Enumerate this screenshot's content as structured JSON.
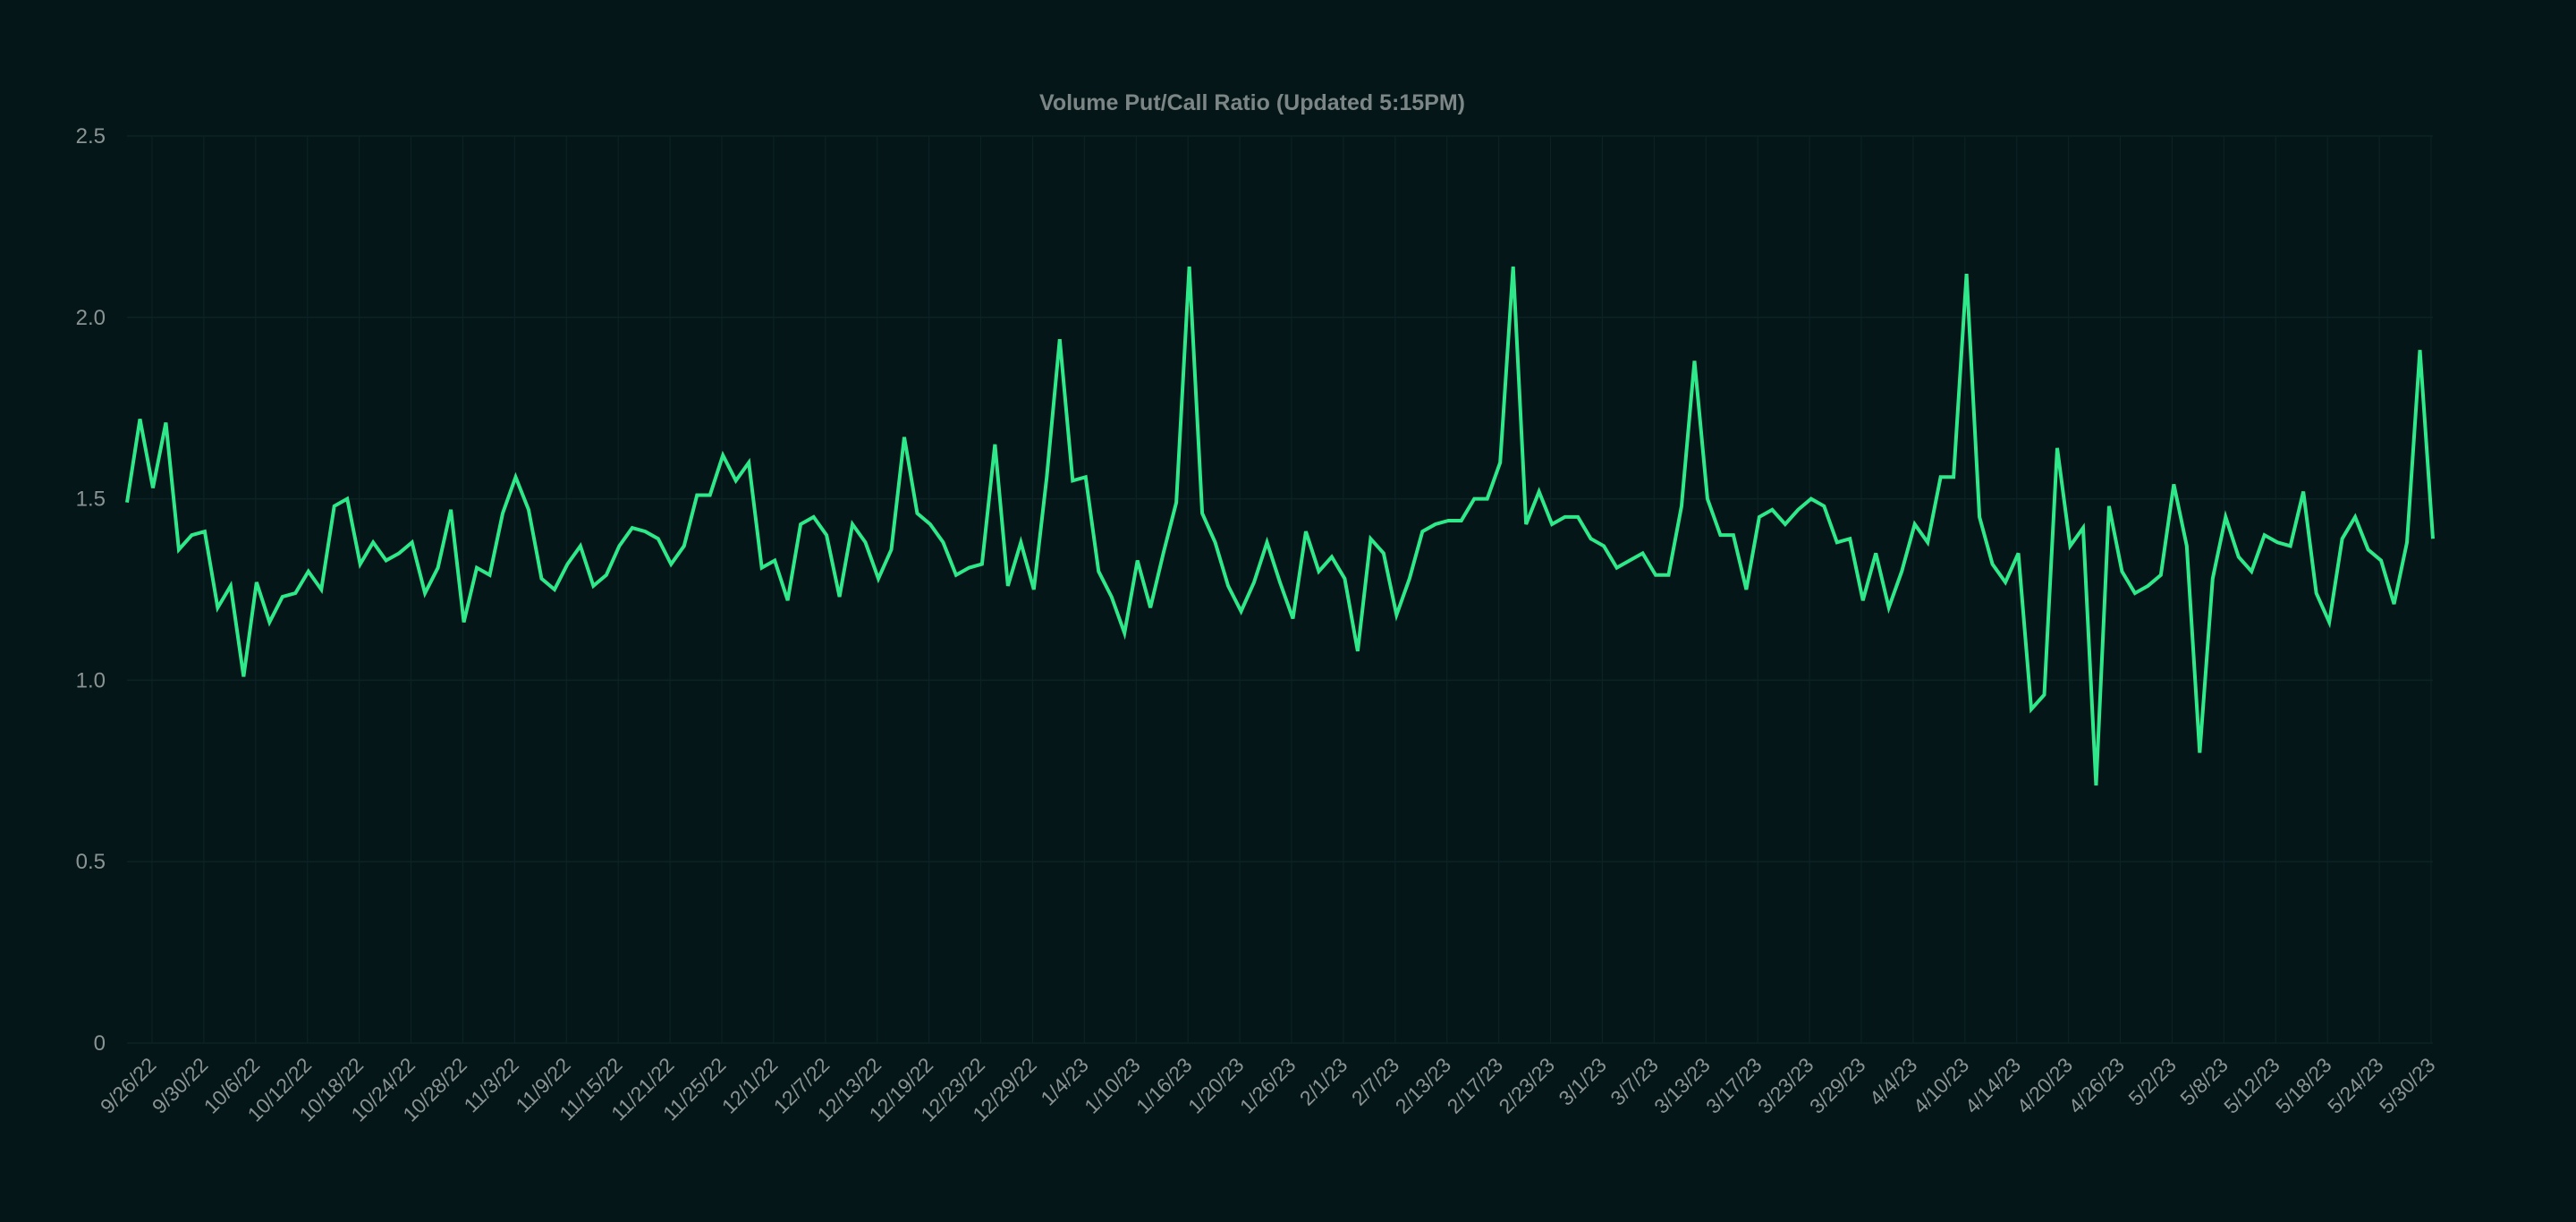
{
  "colors": {
    "background": "#041617",
    "line": "#2ee88a",
    "grid": "#0c2224",
    "axis_text": "#8b9394",
    "title_text": "#7d8687"
  },
  "chart_data": {
    "type": "line",
    "title": "Volume Put/Call Ratio (Updated 5:15PM)",
    "xlabel": "",
    "ylabel": "",
    "ylim": [
      0,
      2.5
    ],
    "y_ticks": [
      0,
      0.5,
      1.0,
      1.5,
      2.0,
      2.5
    ],
    "y_tick_labels": [
      "0",
      "0.5",
      "1.0",
      "1.5",
      "2.0",
      "2.5"
    ],
    "grid": true,
    "legend": "none",
    "x_tick_labels": [
      "9/26/22",
      "9/30/22",
      "10/6/22",
      "10/12/22",
      "10/18/22",
      "10/24/22",
      "10/28/22",
      "11/3/22",
      "11/9/22",
      "11/15/22",
      "11/21/22",
      "11/25/22",
      "12/1/22",
      "12/7/22",
      "12/13/22",
      "12/19/22",
      "12/23/22",
      "12/29/22",
      "1/4/23",
      "1/10/23",
      "1/16/23",
      "1/20/23",
      "1/26/23",
      "2/1/23",
      "2/7/23",
      "2/13/23",
      "2/17/23",
      "2/23/23",
      "3/1/23",
      "3/7/23",
      "3/13/23",
      "3/17/23",
      "3/23/23",
      "3/29/23",
      "4/4/23",
      "4/10/23",
      "4/14/23",
      "4/20/23",
      "4/26/23",
      "5/2/23",
      "5/8/23",
      "5/12/23",
      "5/18/23",
      "5/24/23",
      "5/30/23"
    ],
    "series": [
      {
        "values": [
          1.49,
          1.72,
          1.53,
          1.71,
          1.36,
          1.4,
          1.41,
          1.2,
          1.26,
          1.01,
          1.27,
          1.16,
          1.23,
          1.24,
          1.3,
          1.25,
          1.48,
          1.5,
          1.32,
          1.38,
          1.33,
          1.35,
          1.38,
          1.24,
          1.31,
          1.47,
          1.16,
          1.31,
          1.29,
          1.46,
          1.56,
          1.47,
          1.28,
          1.25,
          1.32,
          1.37,
          1.26,
          1.29,
          1.37,
          1.42,
          1.41,
          1.39,
          1.32,
          1.37,
          1.51,
          1.51,
          1.62,
          1.55,
          1.6,
          1.31,
          1.33,
          1.22,
          1.43,
          1.45,
          1.4,
          1.23,
          1.43,
          1.38,
          1.28,
          1.36,
          1.67,
          1.46,
          1.43,
          1.38,
          1.29,
          1.31,
          1.32,
          1.65,
          1.26,
          1.38,
          1.25,
          1.56,
          1.94,
          1.55,
          1.56,
          1.3,
          1.23,
          1.13,
          1.33,
          1.2,
          1.35,
          1.49,
          2.14,
          1.46,
          1.38,
          1.26,
          1.19,
          1.27,
          1.38,
          1.27,
          1.17,
          1.41,
          1.3,
          1.34,
          1.28,
          1.08,
          1.39,
          1.35,
          1.18,
          1.28,
          1.41,
          1.43,
          1.44,
          1.44,
          1.5,
          1.5,
          1.6,
          2.14,
          1.43,
          1.52,
          1.43,
          1.45,
          1.45,
          1.39,
          1.37,
          1.31,
          1.33,
          1.35,
          1.29,
          1.29,
          1.48,
          1.88,
          1.5,
          1.4,
          1.4,
          1.25,
          1.45,
          1.47,
          1.43,
          1.47,
          1.5,
          1.48,
          1.38,
          1.39,
          1.22,
          1.35,
          1.2,
          1.3,
          1.43,
          1.38,
          1.56,
          1.56,
          2.12,
          1.45,
          1.32,
          1.27,
          1.35,
          0.92,
          0.96,
          1.64,
          1.37,
          1.42,
          0.71,
          1.48,
          1.3,
          1.24,
          1.26,
          1.29,
          1.54,
          1.37,
          0.8,
          1.28,
          1.45,
          1.34,
          1.3,
          1.4,
          1.38,
          1.37,
          1.52,
          1.24,
          1.16,
          1.39,
          1.45,
          1.36,
          1.33,
          1.21,
          1.38,
          1.91,
          1.39
        ]
      }
    ]
  }
}
